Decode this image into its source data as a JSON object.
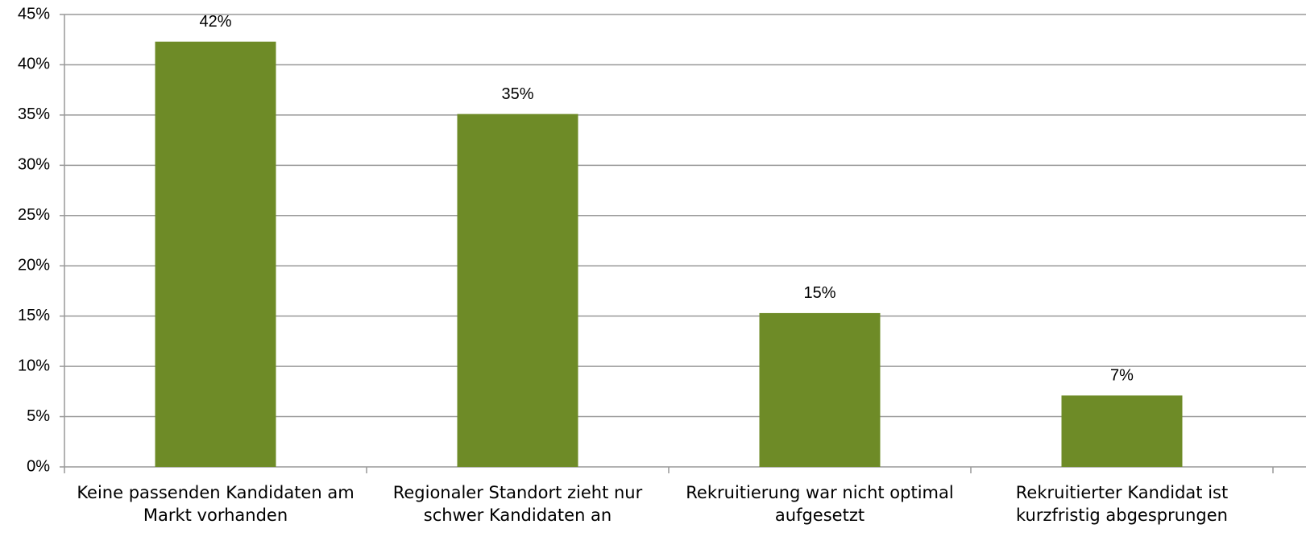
{
  "chart_data": {
    "type": "bar",
    "categories": [
      "Keine passenden Kandidaten am Markt vorhanden",
      "Regionaler Standort zieht nur schwer Kandidaten an",
      "Rekruitierung war nicht optimal aufgesetzt",
      "Rekruitierter Kandidat ist kurzfristig abgesprungen"
    ],
    "values": [
      42.3,
      35.1,
      15.3,
      7.1
    ],
    "value_labels": [
      "42%",
      "35%",
      "15%",
      "7%"
    ],
    "color": "#6e8b27",
    "ylim": [
      0,
      45
    ],
    "yticks": [
      {
        "value": 0,
        "label": "0%"
      },
      {
        "value": 5,
        "label": "5%"
      },
      {
        "value": 10,
        "label": "10%"
      },
      {
        "value": 15,
        "label": "15%"
      },
      {
        "value": 20,
        "label": "20%"
      },
      {
        "value": 25,
        "label": "25%"
      },
      {
        "value": 30,
        "label": "30%"
      },
      {
        "value": 35,
        "label": "35%"
      },
      {
        "value": 40,
        "label": "40%"
      },
      {
        "value": 45,
        "label": "45%"
      }
    ],
    "grid": true
  }
}
